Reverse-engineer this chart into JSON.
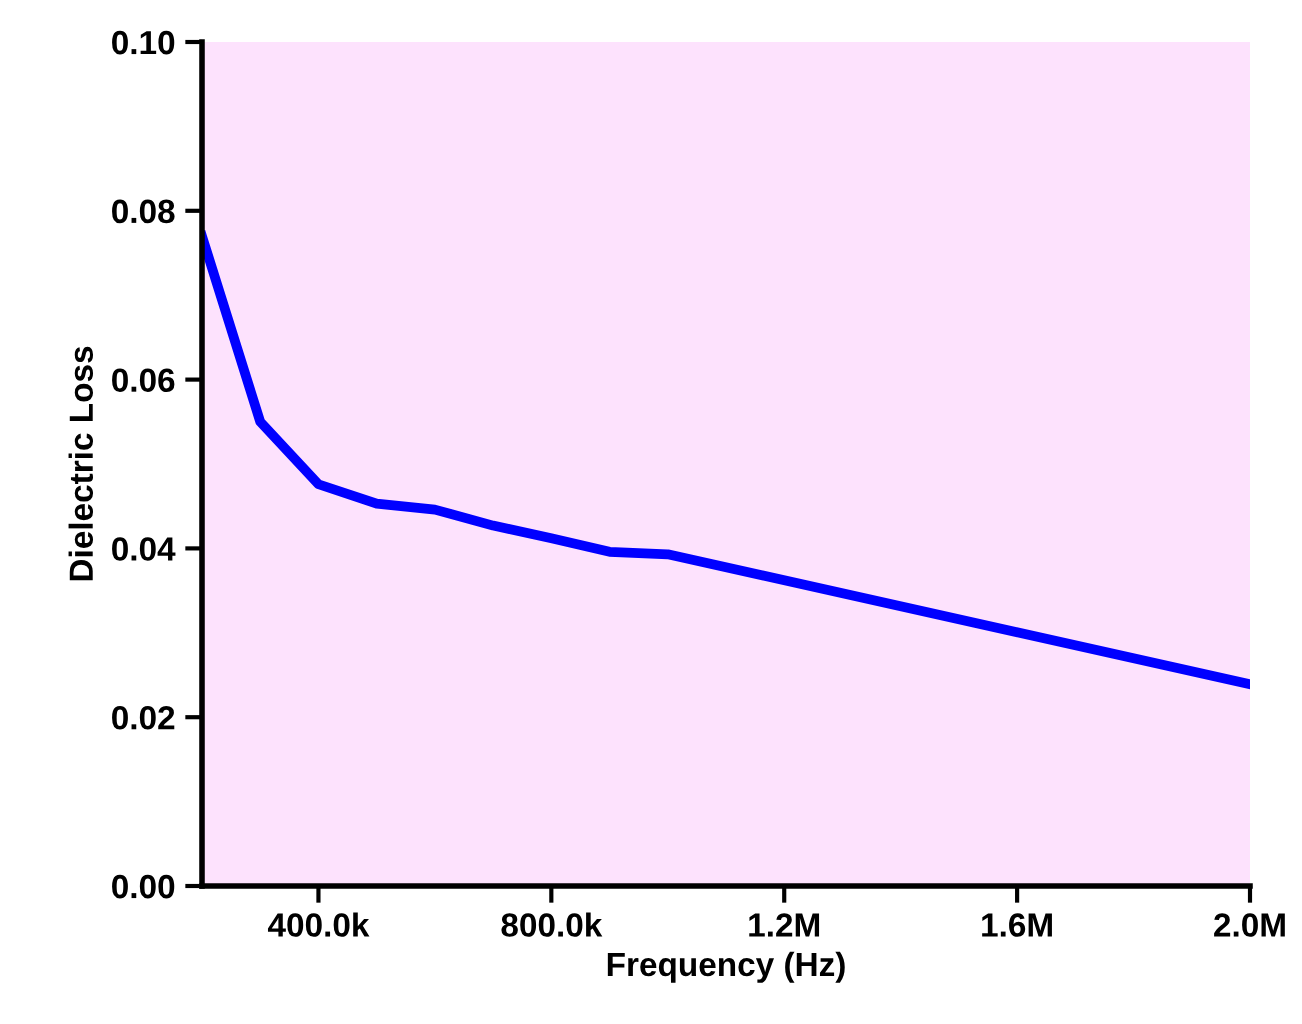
{
  "chart_data": {
    "type": "line",
    "xlabel": "Frequency (Hz)",
    "ylabel": "Dielectric Loss",
    "x": [
      200000,
      300000,
      400000,
      500000,
      600000,
      700000,
      800000,
      900000,
      1000000,
      2000000
    ],
    "series": [
      {
        "color": "#0000ff",
        "values": [
          0.077,
          0.055,
          0.0476,
          0.0453,
          0.0446,
          0.0427,
          0.0412,
          0.0396,
          0.0393,
          0.0239
        ]
      }
    ],
    "xlim": [
      200000,
      2000000
    ],
    "xticks": [
      {
        "value": 400000,
        "label": "400.0k"
      },
      {
        "value": 800000,
        "label": "800.0k"
      },
      {
        "value": 1200000,
        "label": "1.2M"
      },
      {
        "value": 1600000,
        "label": "1.6M"
      },
      {
        "value": 2000000,
        "label": "2.0M"
      }
    ],
    "ylim": [
      0,
      0.1
    ],
    "yticks": [
      {
        "value": 0,
        "label": "0.00"
      },
      {
        "value": 0.02,
        "label": "0.02"
      },
      {
        "value": 0.04,
        "label": "0.04"
      },
      {
        "value": 0.06,
        "label": "0.06"
      },
      {
        "value": 0.08,
        "label": "0.08"
      },
      {
        "value": 0.1,
        "label": "0.10"
      }
    ],
    "grid": false,
    "legend": false,
    "marker": "none",
    "line_style": "solid"
  }
}
